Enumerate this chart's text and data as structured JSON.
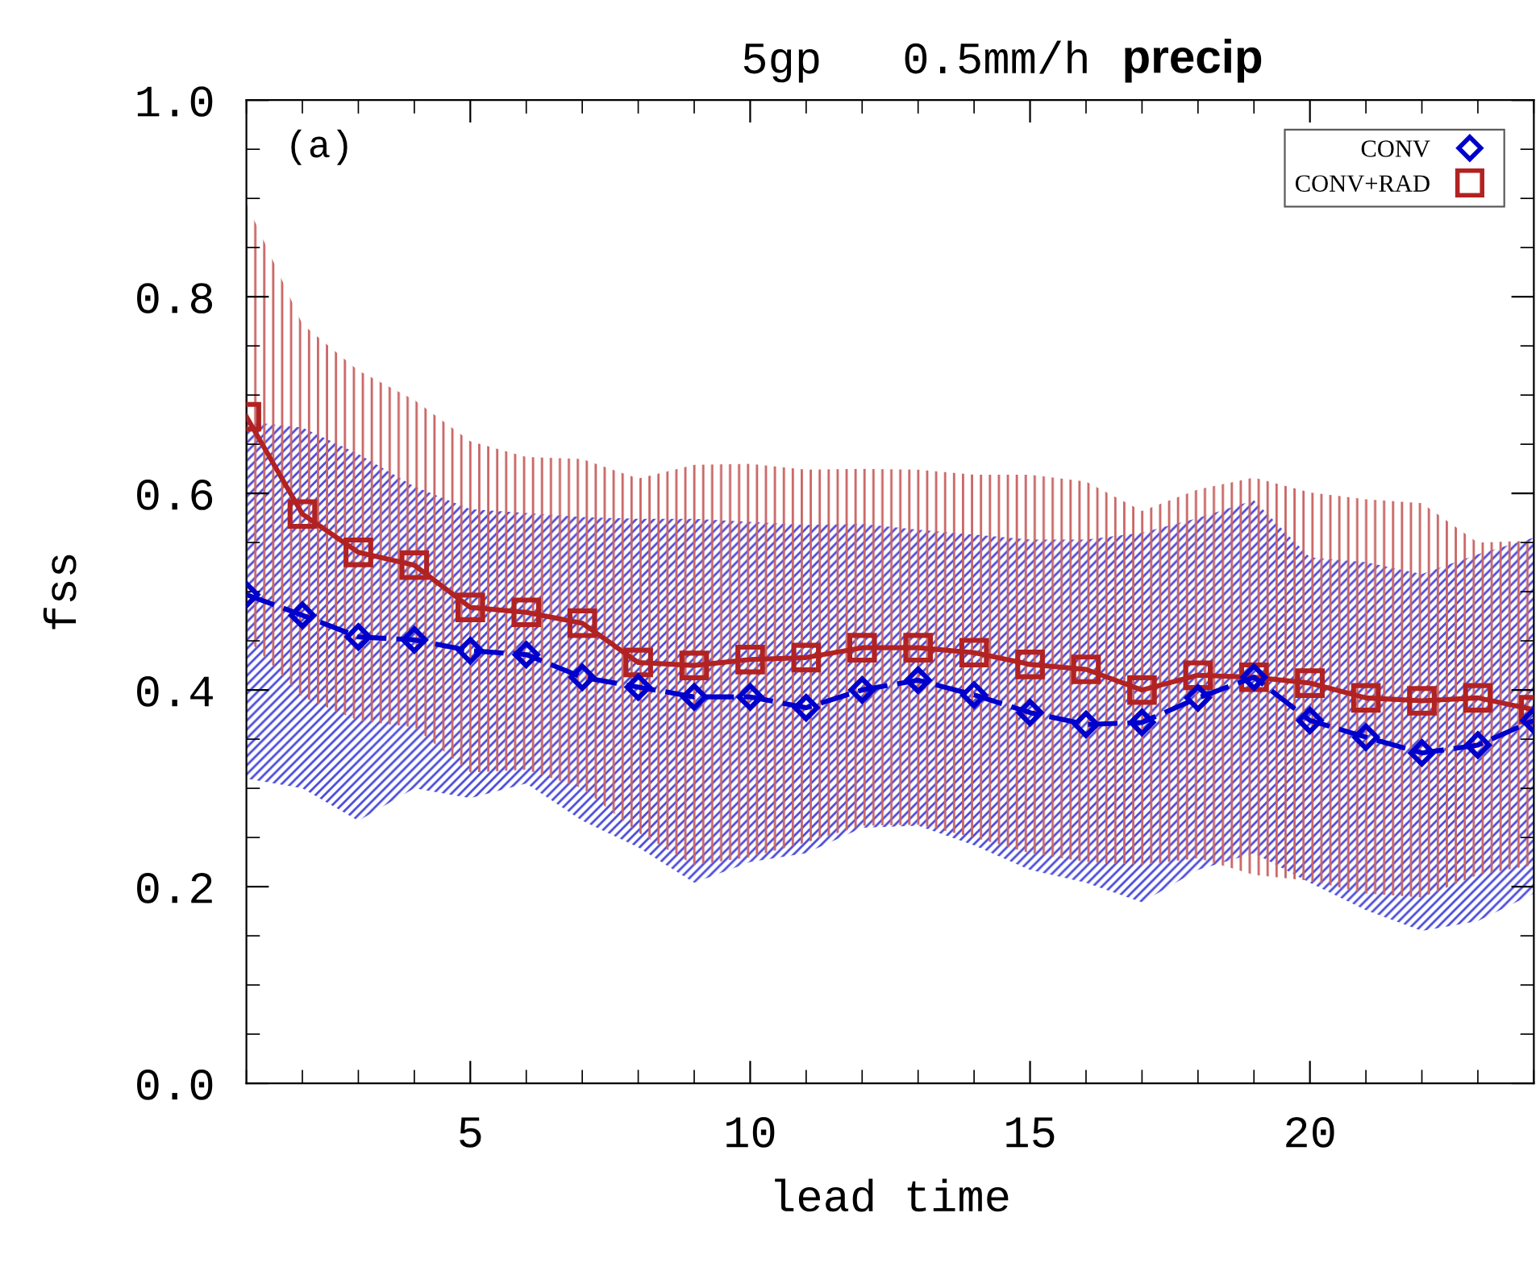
{
  "chart_data": {
    "type": "line",
    "title": "5gp   0.5mm/h",
    "subtitle": "precip",
    "xlabel": "lead time",
    "ylabel": "fss",
    "annotations": [
      "(a)"
    ],
    "x": [
      1,
      2,
      3,
      4,
      5,
      6,
      7,
      8,
      9,
      10,
      11,
      12,
      13,
      14,
      15,
      16,
      17,
      18,
      19,
      20,
      21,
      22,
      23,
      24
    ],
    "xlim": [
      1,
      24
    ],
    "xticks": [
      5,
      10,
      15,
      20
    ],
    "ylim": [
      0,
      1
    ],
    "yticks": [
      {
        "value": 0,
        "label": "0.0"
      },
      {
        "value": 0.2,
        "label": "0.2"
      },
      {
        "value": 0.4,
        "label": "0.4"
      },
      {
        "value": 0.6,
        "label": "0.6"
      },
      {
        "value": 0.8,
        "label": "0.8"
      },
      {
        "value": 1.0,
        "label": "1.0"
      }
    ],
    "grid": false,
    "legend": "top right",
    "series": [
      {
        "name": "CONV",
        "color": "#0000cc",
        "marker": "diamond",
        "line_style": "dashed",
        "values": [
          0.497,
          0.476,
          0.454,
          0.451,
          0.44,
          0.436,
          0.413,
          0.403,
          0.393,
          0.393,
          0.382,
          0.4,
          0.41,
          0.395,
          0.377,
          0.365,
          0.367,
          0.392,
          0.413,
          0.369,
          0.352,
          0.336,
          0.344,
          0.369
        ],
        "lower": [
          0.31,
          0.3,
          0.267,
          0.3,
          0.29,
          0.305,
          0.267,
          0.24,
          0.204,
          0.225,
          0.234,
          0.26,
          0.262,
          0.242,
          0.217,
          0.204,
          0.184,
          0.217,
          0.234,
          0.204,
          0.176,
          0.155,
          0.165,
          0.193
        ],
        "upper": [
          0.673,
          0.667,
          0.64,
          0.607,
          0.584,
          0.58,
          0.576,
          0.574,
          0.574,
          0.571,
          0.568,
          0.569,
          0.563,
          0.558,
          0.553,
          0.553,
          0.56,
          0.575,
          0.593,
          0.535,
          0.53,
          0.518,
          0.538,
          0.555
        ]
      },
      {
        "name": "CONV+RAD",
        "color": "#b22222",
        "marker": "square",
        "line_style": "solid",
        "values": [
          0.678,
          0.579,
          0.54,
          0.527,
          0.484,
          0.479,
          0.468,
          0.428,
          0.425,
          0.431,
          0.433,
          0.443,
          0.443,
          0.438,
          0.426,
          0.421,
          0.4,
          0.415,
          0.413,
          0.407,
          0.392,
          0.389,
          0.392,
          0.38
        ],
        "lower": [
          0.453,
          0.393,
          0.369,
          0.362,
          0.316,
          0.319,
          0.3,
          0.255,
          0.222,
          0.23,
          0.245,
          0.262,
          0.263,
          0.25,
          0.234,
          0.225,
          0.222,
          0.229,
          0.212,
          0.206,
          0.193,
          0.189,
          0.212,
          0.222
        ],
        "upper": [
          0.895,
          0.772,
          0.725,
          0.695,
          0.653,
          0.637,
          0.635,
          0.615,
          0.629,
          0.63,
          0.624,
          0.625,
          0.624,
          0.619,
          0.619,
          0.612,
          0.582,
          0.604,
          0.616,
          0.601,
          0.594,
          0.59,
          0.55,
          0.552
        ]
      }
    ]
  }
}
